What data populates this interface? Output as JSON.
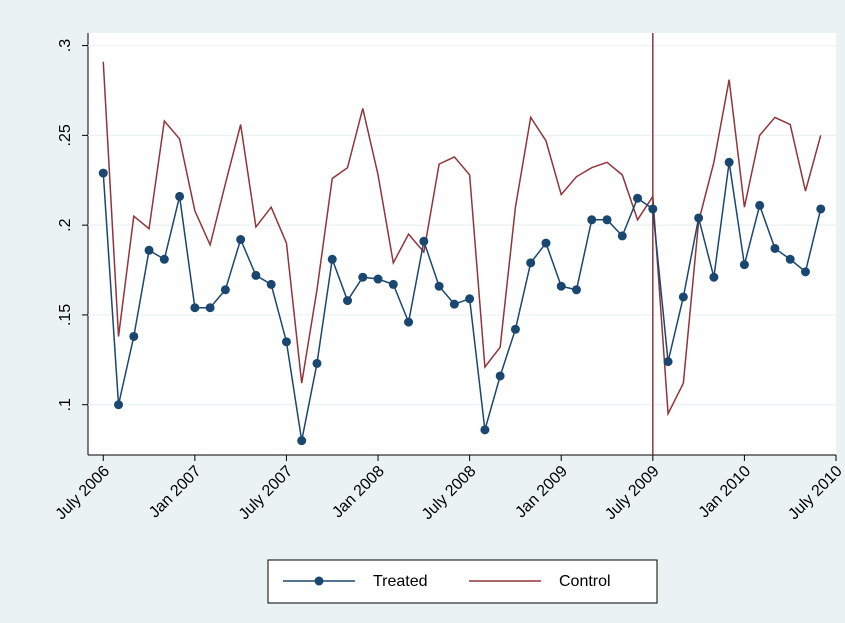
{
  "chart_data": {
    "type": "line",
    "x": [
      "2006-07",
      "2006-08",
      "2006-09",
      "2006-10",
      "2006-11",
      "2006-12",
      "2007-01",
      "2007-02",
      "2007-03",
      "2007-04",
      "2007-05",
      "2007-06",
      "2007-07",
      "2007-08",
      "2007-09",
      "2007-10",
      "2007-11",
      "2007-12",
      "2008-01",
      "2008-02",
      "2008-03",
      "2008-04",
      "2008-05",
      "2008-06",
      "2008-07",
      "2008-08",
      "2008-09",
      "2008-10",
      "2008-11",
      "2008-12",
      "2009-01",
      "2009-02",
      "2009-03",
      "2009-04",
      "2009-05",
      "2009-06",
      "2009-07",
      "2009-08",
      "2009-09",
      "2009-10",
      "2009-11",
      "2009-12",
      "2010-01",
      "2010-02",
      "2010-03",
      "2010-04",
      "2010-05",
      "2010-06"
    ],
    "series": [
      {
        "name": "Treated",
        "color": "#1a476f",
        "markers": true,
        "values": [
          0.229,
          0.1,
          0.138,
          0.186,
          0.181,
          0.216,
          0.154,
          0.154,
          0.164,
          0.192,
          0.172,
          0.167,
          0.135,
          0.08,
          0.123,
          0.181,
          0.158,
          0.171,
          0.17,
          0.167,
          0.146,
          0.191,
          0.166,
          0.156,
          0.159,
          0.086,
          0.116,
          0.142,
          0.179,
          0.19,
          0.166,
          0.164,
          0.203,
          0.203,
          0.194,
          0.215,
          0.209,
          0.124,
          0.16,
          0.204,
          0.171,
          0.235,
          0.178,
          0.211,
          0.187,
          0.181,
          0.174,
          0.209
        ]
      },
      {
        "name": "Control",
        "color": "#90353b",
        "markers": false,
        "values": [
          0.291,
          0.138,
          0.205,
          0.198,
          0.258,
          0.248,
          0.208,
          0.189,
          0.223,
          0.256,
          0.199,
          0.21,
          0.19,
          0.112,
          0.164,
          0.226,
          0.232,
          0.265,
          0.228,
          0.179,
          0.195,
          0.185,
          0.234,
          0.238,
          0.228,
          0.121,
          0.132,
          0.21,
          0.26,
          0.247,
          0.217,
          0.227,
          0.232,
          0.235,
          0.228,
          0.203,
          0.216,
          0.095,
          0.112,
          0.202,
          0.235,
          0.281,
          0.21,
          0.25,
          0.26,
          0.256,
          0.219,
          0.25
        ]
      }
    ],
    "xlim": [
      "2006-06",
      "2010-07"
    ],
    "xticks": [
      {
        "value": "2006-07",
        "label": "July 2006"
      },
      {
        "value": "2007-01",
        "label": "Jan 2007"
      },
      {
        "value": "2007-07",
        "label": "July 2007"
      },
      {
        "value": "2008-01",
        "label": "Jan 2008"
      },
      {
        "value": "2008-07",
        "label": "July 2008"
      },
      {
        "value": "2009-01",
        "label": "Jan 2009"
      },
      {
        "value": "2009-07",
        "label": "July 2009"
      },
      {
        "value": "2010-01",
        "label": "Jan 2010"
      },
      {
        "value": "2010-07",
        "label": "July 2010"
      }
    ],
    "ylim": [
      0.072,
      0.307
    ],
    "yticks": [
      {
        "value": 0.1,
        "label": ".1"
      },
      {
        "value": 0.15,
        "label": ".15"
      },
      {
        "value": 0.2,
        "label": ".2"
      },
      {
        "value": 0.25,
        "label": ".25"
      },
      {
        "value": 0.3,
        "label": ".3"
      }
    ],
    "vline": {
      "x": "2009-07",
      "color": "#90353b"
    },
    "grid": true,
    "legend": "bottom"
  }
}
